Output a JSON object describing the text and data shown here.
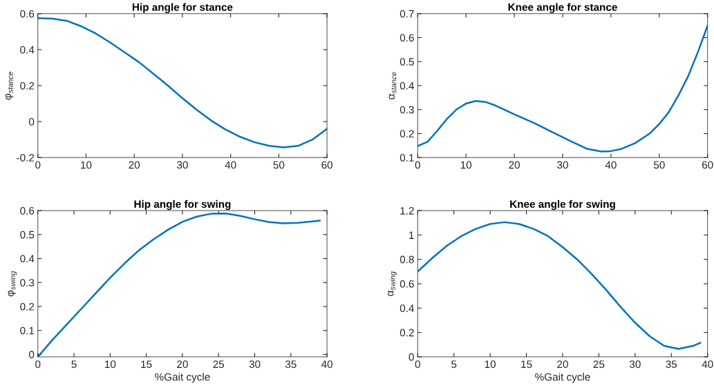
{
  "chart_data": [
    {
      "type": "line",
      "title": "Hip angle for stance",
      "ylabel": "φ$_{stance}$",
      "x": [
        0,
        3,
        6,
        9,
        12,
        15,
        18,
        21,
        24,
        27,
        30,
        33,
        36,
        39,
        42,
        45,
        48,
        51,
        54,
        57,
        60
      ],
      "series": [
        {
          "color": "#0072bd",
          "values": [
            0.575,
            0.572,
            0.56,
            0.53,
            0.49,
            0.44,
            0.385,
            0.33,
            0.265,
            0.2,
            0.13,
            0.065,
            0.005,
            -0.045,
            -0.085,
            -0.115,
            -0.135,
            -0.143,
            -0.135,
            -0.1,
            -0.04
          ]
        }
      ],
      "xlim": [
        0,
        60
      ],
      "xticks": [
        0,
        10,
        20,
        30,
        40,
        50,
        60
      ],
      "ylim": [
        -0.2,
        0.6
      ],
      "yticks": [
        -0.2,
        0,
        0.2,
        0.4,
        0.6
      ]
    },
    {
      "type": "line",
      "title": "Knee angle for stance",
      "ylabel": "α$_{stance}$",
      "x": [
        0,
        2,
        4,
        6,
        8,
        10,
        12,
        14,
        16,
        20,
        24,
        28,
        32,
        35,
        38,
        40,
        42,
        45,
        48,
        50,
        52,
        54,
        56,
        58,
        60
      ],
      "series": [
        {
          "color": "#0072bd",
          "values": [
            0.148,
            0.165,
            0.21,
            0.26,
            0.3,
            0.325,
            0.336,
            0.332,
            0.318,
            0.28,
            0.245,
            0.205,
            0.165,
            0.137,
            0.125,
            0.127,
            0.135,
            0.16,
            0.2,
            0.24,
            0.29,
            0.36,
            0.44,
            0.54,
            0.65
          ]
        }
      ],
      "xlim": [
        0,
        60
      ],
      "xticks": [
        0,
        10,
        20,
        30,
        40,
        50,
        60
      ],
      "ylim": [
        0.1,
        0.7
      ],
      "yticks": [
        0.1,
        0.2,
        0.3,
        0.4,
        0.5,
        0.6,
        0.7
      ]
    },
    {
      "type": "line",
      "title": "Hip angle for swing",
      "xlabel": "%Gait cycle",
      "ylabel": "φ$_{swing}$",
      "x": [
        0,
        2,
        4,
        6,
        8,
        10,
        12,
        14,
        16,
        18,
        20,
        22,
        24,
        26,
        28,
        30,
        32,
        34,
        36,
        38,
        39
      ],
      "series": [
        {
          "color": "#0072bd",
          "values": [
            -0.01,
            0.06,
            0.125,
            0.19,
            0.255,
            0.32,
            0.38,
            0.435,
            0.48,
            0.52,
            0.553,
            0.575,
            0.587,
            0.588,
            0.578,
            0.564,
            0.552,
            0.547,
            0.549,
            0.555,
            0.558
          ]
        }
      ],
      "xlim": [
        0,
        40
      ],
      "xticks": [
        0,
        5,
        10,
        15,
        20,
        25,
        30,
        35,
        40
      ],
      "ylim": [
        -0.01,
        0.6
      ],
      "yticks": [
        0,
        0.1,
        0.2,
        0.3,
        0.4,
        0.5,
        0.6
      ]
    },
    {
      "type": "line",
      "title": "Knee angle for swing",
      "xlabel": "%Gait cycle",
      "ylabel": "α$_{swing}$",
      "x": [
        0,
        2,
        4,
        6,
        8,
        10,
        12,
        14,
        16,
        18,
        20,
        22,
        24,
        26,
        28,
        30,
        32,
        34,
        36,
        38,
        39
      ],
      "series": [
        {
          "color": "#0072bd",
          "values": [
            0.7,
            0.81,
            0.91,
            0.99,
            1.05,
            1.09,
            1.105,
            1.09,
            1.05,
            0.99,
            0.9,
            0.8,
            0.68,
            0.55,
            0.41,
            0.28,
            0.17,
            0.09,
            0.065,
            0.09,
            0.115
          ]
        }
      ],
      "xlim": [
        0,
        40
      ],
      "xticks": [
        0,
        5,
        10,
        15,
        20,
        25,
        30,
        35,
        40
      ],
      "ylim": [
        0,
        1.2
      ],
      "yticks": [
        0,
        0.2,
        0.4,
        0.6,
        0.8,
        1,
        1.2
      ]
    }
  ]
}
